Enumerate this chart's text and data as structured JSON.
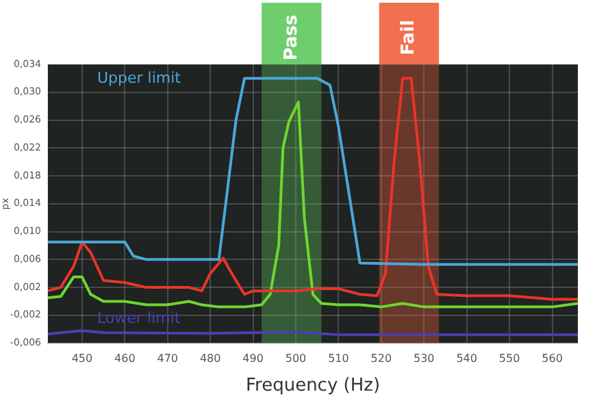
{
  "chart_data": {
    "type": "line",
    "xlabel": "Frequency (Hz)",
    "ylabel": "px",
    "xlim": [
      442,
      566
    ],
    "xticks": [
      450,
      460,
      470,
      480,
      490,
      500,
      510,
      520,
      530,
      540,
      550,
      560
    ],
    "ylim": [
      -0.006,
      0.034
    ],
    "yticks": [
      {
        "value": -0.006,
        "label": "-0,006"
      },
      {
        "value": -0.002,
        "label": "-0,002"
      },
      {
        "value": 0.002,
        "label": "0,002"
      },
      {
        "value": 0.006,
        "label": "0,006"
      },
      {
        "value": 0.01,
        "label": "0,010"
      },
      {
        "value": 0.014,
        "label": "0,014"
      },
      {
        "value": 0.018,
        "label": "0,018"
      },
      {
        "value": 0.022,
        "label": "0,022"
      },
      {
        "value": 0.026,
        "label": "0,026"
      },
      {
        "value": 0.03,
        "label": "0,030"
      },
      {
        "value": 0.034,
        "label": "0,034"
      }
    ],
    "grid": true,
    "legend": false,
    "marker": "none",
    "line_style": "solid",
    "bands": [
      {
        "axis": "x",
        "from": 492,
        "to": 506,
        "label": "Pass",
        "color": "#5ec95e"
      },
      {
        "axis": "x",
        "from": 519.5,
        "to": 533.5,
        "label": "Fail",
        "color": "#f0603c"
      }
    ],
    "series": [
      {
        "name": "Upper limit",
        "color": "#4aa8d8",
        "x": [
          442,
          460,
          462,
          465,
          482,
          486,
          488,
          505,
          508,
          510,
          515,
          530,
          566
        ],
        "values": [
          0.0085,
          0.0085,
          0.0065,
          0.006,
          0.006,
          0.026,
          0.032,
          0.032,
          0.031,
          0.025,
          0.0055,
          0.0053,
          0.0053
        ]
      },
      {
        "name": "Lower limit",
        "color": "#4b3fb0",
        "x": [
          442,
          450,
          455,
          480,
          500,
          510,
          566
        ],
        "values": [
          -0.0047,
          -0.0042,
          -0.0045,
          -0.0046,
          -0.0044,
          -0.0048,
          -0.0048
        ]
      },
      {
        "color": "#e8352a",
        "x": [
          442,
          445,
          448,
          450,
          452,
          455,
          460,
          465,
          470,
          475,
          478,
          480,
          483,
          485,
          488,
          490,
          495,
          500,
          505,
          510,
          515,
          519,
          521,
          523,
          525,
          527,
          529,
          531,
          533,
          540,
          550,
          560,
          566
        ],
        "values": [
          0.0015,
          0.002,
          0.005,
          0.0085,
          0.007,
          0.003,
          0.0027,
          0.002,
          0.002,
          0.002,
          0.0015,
          0.004,
          0.0062,
          0.004,
          0.001,
          0.0015,
          0.0015,
          0.0015,
          0.0018,
          0.0018,
          0.001,
          0.0008,
          0.004,
          0.02,
          0.032,
          0.032,
          0.02,
          0.005,
          0.001,
          0.0008,
          0.0008,
          0.0003,
          0.0003
        ]
      },
      {
        "color": "#6fd630",
        "x": [
          442,
          445,
          448,
          450,
          452,
          455,
          460,
          465,
          470,
          475,
          478,
          482,
          488,
          492,
          494,
          496,
          497,
          498.4,
          500.6,
          502,
          504,
          506,
          510,
          515,
          520,
          525,
          530,
          540,
          550,
          560,
          566
        ],
        "values": [
          0.0005,
          0.0007,
          0.0035,
          0.0035,
          0.001,
          0,
          0,
          -0.0005,
          -0.0005,
          0,
          -0.0005,
          -0.0008,
          -0.0008,
          -0.0005,
          0.001,
          0.008,
          0.022,
          0.0258,
          0.0286,
          0.012,
          0.001,
          -0.0003,
          -0.0005,
          -0.0005,
          -0.0008,
          -0.0003,
          -0.0008,
          -0.0008,
          -0.0008,
          -0.0008,
          -0.0003
        ]
      }
    ]
  }
}
